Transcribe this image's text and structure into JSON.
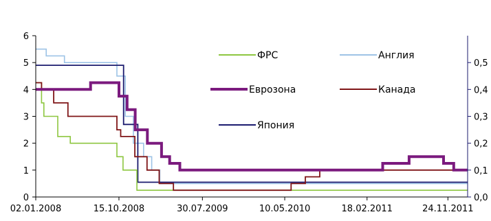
{
  "chart_data": {
    "type": "line",
    "step": true,
    "title": "",
    "title_fragment": "",
    "xlabel": "",
    "ylabel": "",
    "x_tick_labels": [
      "02.01.2008",
      "15.10.2008",
      "30.07.2009",
      "10.05.2010",
      "18.02.2011",
      "24.11.2011"
    ],
    "x_tick_values": [
      "2008-01-02",
      "2008-10-15",
      "2009-07-30",
      "2010-05-10",
      "2011-02-18",
      "2011-11-24"
    ],
    "xlim": [
      "2008-01-02",
      "2012-01-31"
    ],
    "ylim": [
      0,
      6
    ],
    "y_ticks": [
      "0",
      "1",
      "2",
      "3",
      "4",
      "5",
      "6"
    ],
    "y2lim": [
      0,
      0.6
    ],
    "y2_ticks": [
      "0,0",
      "0,1",
      "0,2",
      "0,3",
      "0,4",
      "0,5"
    ],
    "grid": false,
    "legend_position": "inside-top-right",
    "series": [
      {
        "name": "ФРС",
        "color": "#8dc63f",
        "points": [
          [
            "2008-01-02",
            4.25
          ],
          [
            "2008-01-22",
            3.5
          ],
          [
            "2008-01-30",
            3.0
          ],
          [
            "2008-03-18",
            2.25
          ],
          [
            "2008-04-30",
            2.0
          ],
          [
            "2008-10-08",
            1.5
          ],
          [
            "2008-10-29",
            1.0
          ],
          [
            "2008-12-16",
            0.25
          ],
          [
            "2012-01-31",
            0.25
          ]
        ]
      },
      {
        "name": "Англия",
        "color": "#9dc3e6",
        "points": [
          [
            "2008-01-02",
            5.5
          ],
          [
            "2008-02-07",
            5.25
          ],
          [
            "2008-04-10",
            5.0
          ],
          [
            "2008-10-08",
            4.5
          ],
          [
            "2008-11-06",
            3.0
          ],
          [
            "2008-12-04",
            2.0
          ],
          [
            "2009-01-08",
            1.5
          ],
          [
            "2009-02-05",
            1.0
          ],
          [
            "2009-03-05",
            0.5
          ],
          [
            "2012-01-31",
            0.5
          ]
        ]
      },
      {
        "name": "Еврозона",
        "color": "#7b1a7e",
        "points": [
          [
            "2008-01-02",
            4.0
          ],
          [
            "2008-07-09",
            4.25
          ],
          [
            "2008-10-15",
            3.75
          ],
          [
            "2008-11-12",
            3.25
          ],
          [
            "2008-12-10",
            2.5
          ],
          [
            "2009-01-21",
            2.0
          ],
          [
            "2009-03-11",
            1.5
          ],
          [
            "2009-04-08",
            1.25
          ],
          [
            "2009-05-13",
            1.0
          ],
          [
            "2011-04-13",
            1.25
          ],
          [
            "2011-07-13",
            1.5
          ],
          [
            "2011-11-09",
            1.25
          ],
          [
            "2011-12-14",
            1.0
          ],
          [
            "2012-01-31",
            1.0
          ]
        ]
      },
      {
        "name": "Канада",
        "color": "#7f1416",
        "points": [
          [
            "2008-01-02",
            4.25
          ],
          [
            "2008-01-22",
            4.0
          ],
          [
            "2008-03-04",
            3.5
          ],
          [
            "2008-04-22",
            3.0
          ],
          [
            "2008-10-08",
            2.5
          ],
          [
            "2008-10-21",
            2.25
          ],
          [
            "2008-12-09",
            1.5
          ],
          [
            "2009-01-20",
            1.0
          ],
          [
            "2009-03-03",
            0.5
          ],
          [
            "2009-04-21",
            0.25
          ],
          [
            "2010-06-01",
            0.5
          ],
          [
            "2010-07-20",
            0.75
          ],
          [
            "2010-09-08",
            1.0
          ],
          [
            "2012-01-31",
            1.0
          ]
        ]
      },
      {
        "name": "Япония",
        "color": "#1a1a6e",
        "points": [
          [
            "2008-01-02",
            4.9
          ],
          [
            "2008-10-31",
            2.7
          ],
          [
            "2008-12-19",
            0.55
          ],
          [
            "2012-01-31",
            0.55
          ]
        ]
      }
    ]
  }
}
